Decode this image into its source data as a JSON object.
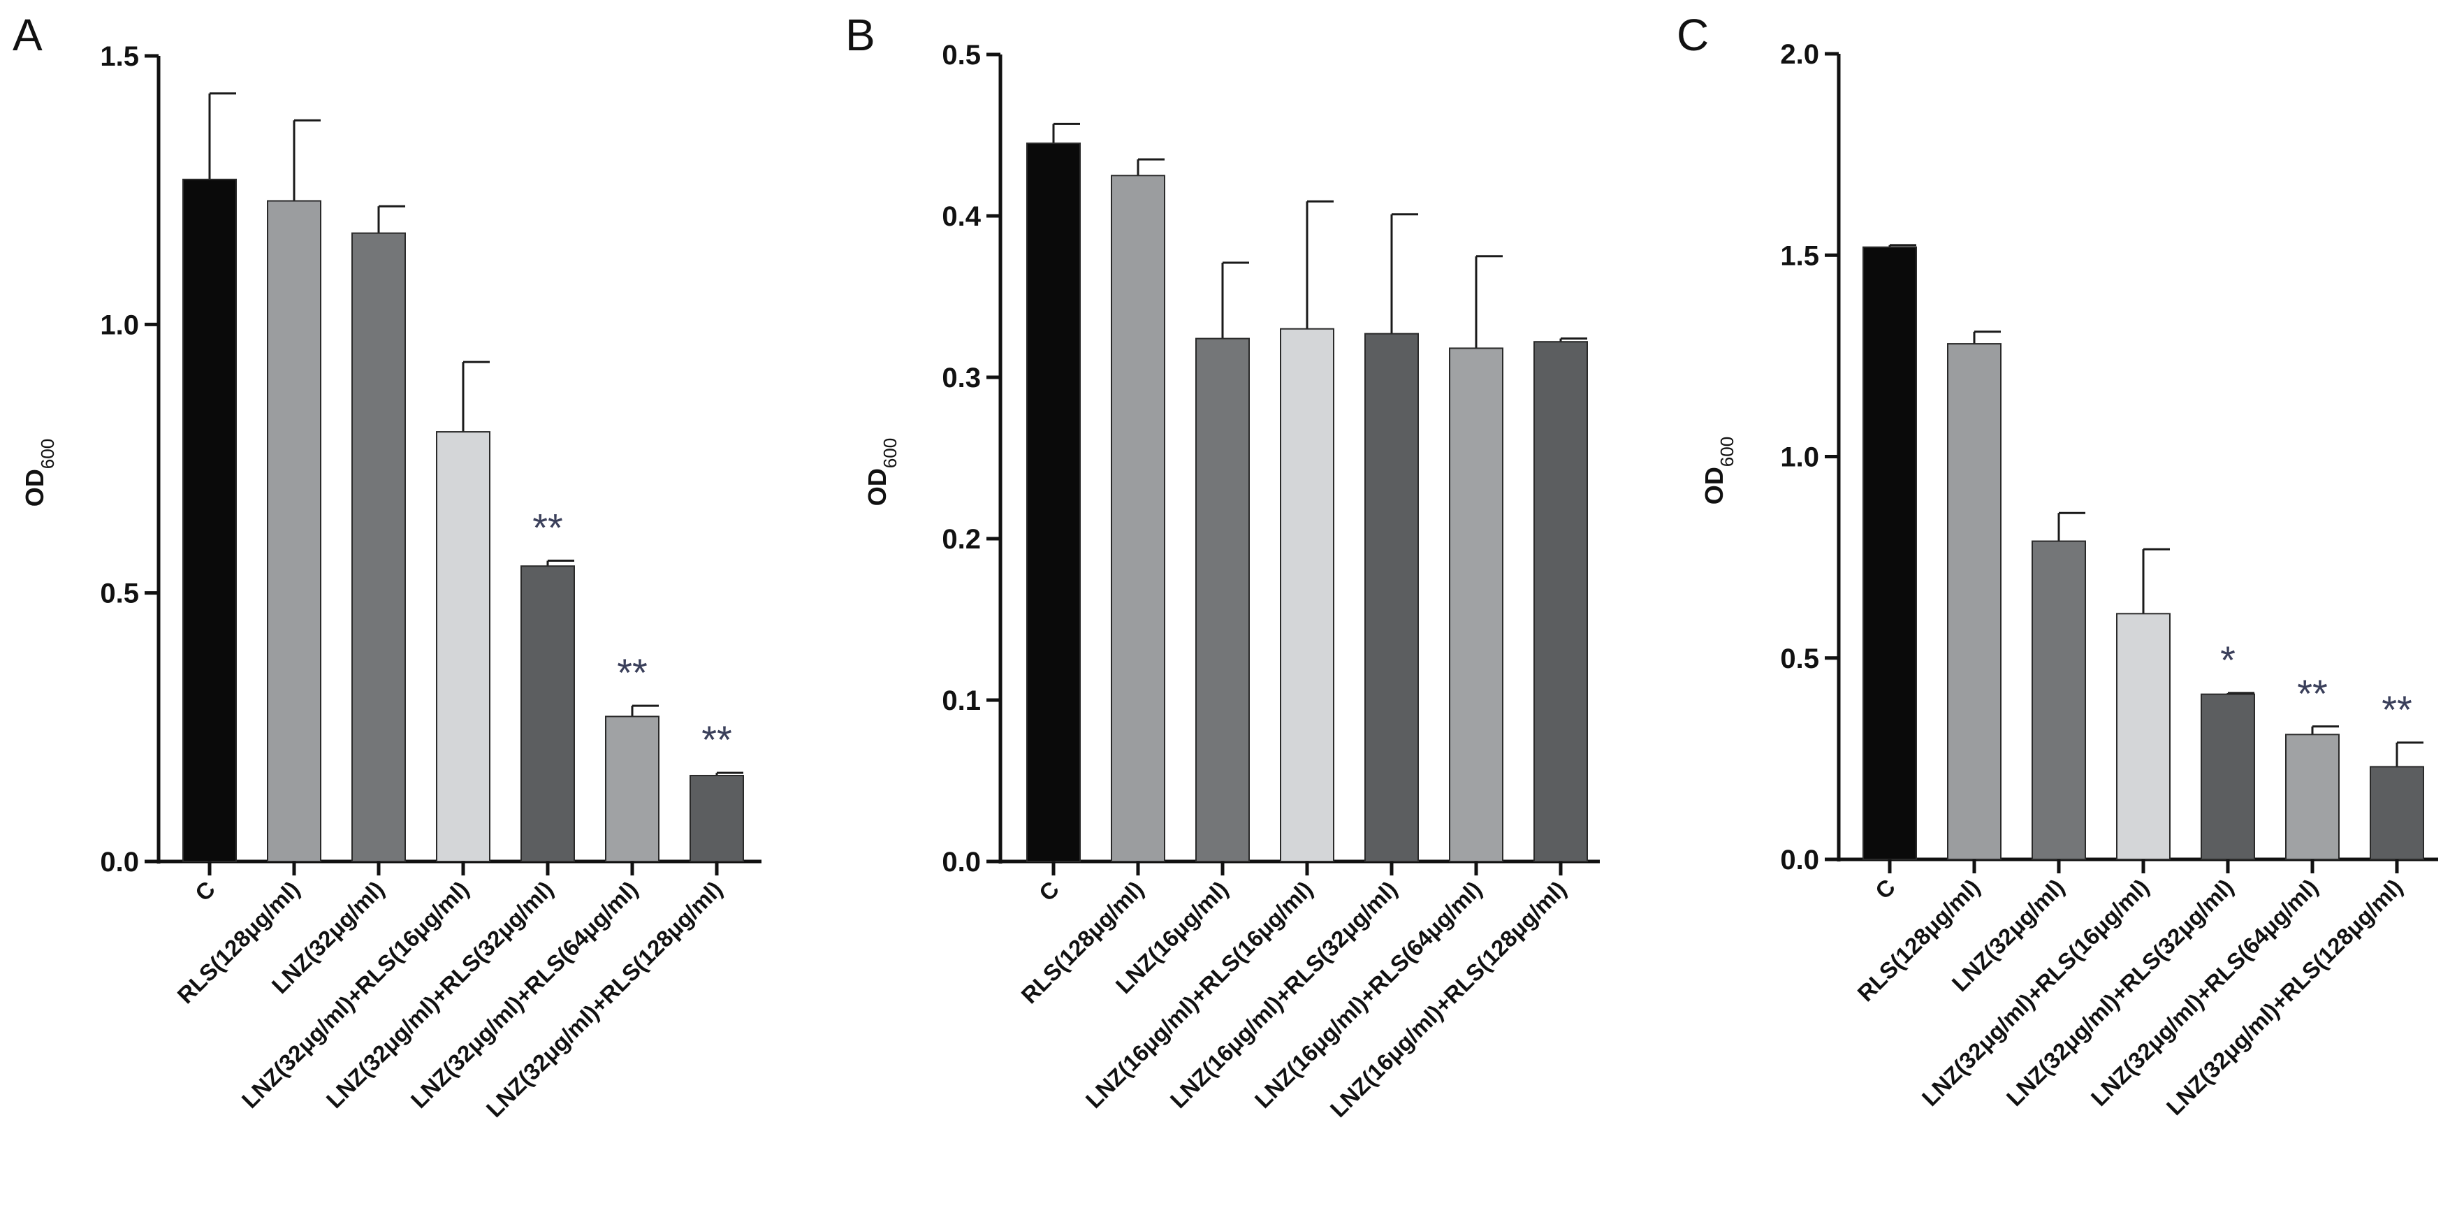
{
  "chart_data": [
    {
      "panel": "A",
      "type": "bar",
      "ylabel": "OD",
      "ylabel_sub": "600",
      "ylim": [
        0,
        1.5
      ],
      "yticks": [
        0.0,
        0.5,
        1.0,
        1.5
      ],
      "ytick_labels": [
        "0.0",
        "0.5",
        "1.0",
        "1.5"
      ],
      "categories": [
        "C",
        "RLS(128μg/ml)",
        "LNZ(32μg/ml)",
        "LNZ(32μg/ml)+RLS(16μg/ml)",
        "LNZ(32μg/ml)+RLS(32μg/ml)",
        "LNZ(32μg/ml)+RLS(64μg/ml)",
        "LNZ(32μg/ml)+RLS(128μg/ml)"
      ],
      "values": [
        1.27,
        1.23,
        1.17,
        0.8,
        0.55,
        0.27,
        0.16
      ],
      "errors": [
        0.16,
        0.15,
        0.05,
        0.13,
        0.01,
        0.02,
        0.005
      ],
      "significance": [
        "",
        "",
        "",
        "",
        "**",
        "**",
        "**"
      ],
      "colors": [
        "#0a0a0a",
        "#9b9d9f",
        "#747678",
        "#d4d6d8",
        "#5c5e60",
        "#a0a2a4",
        "#5c5e60"
      ]
    },
    {
      "panel": "B",
      "type": "bar",
      "ylabel": "OD",
      "ylabel_sub": "600",
      "ylim": [
        0,
        0.5
      ],
      "yticks": [
        0.0,
        0.1,
        0.2,
        0.3,
        0.4,
        0.5
      ],
      "ytick_labels": [
        "0.0",
        "0.1",
        "0.2",
        "0.3",
        "0.4",
        "0.5"
      ],
      "categories": [
        "C",
        "RLS(128μg/ml)",
        "LNZ(16μg/ml)",
        "LNZ(16μg/ml)+RLS(16μg/ml)",
        "LNZ(16μg/ml)+RLS(32μg/ml)",
        "LNZ(16μg/ml)+RLS(64μg/ml)",
        "LNZ(16μg/ml)+RLS(128μg/ml)"
      ],
      "values": [
        0.445,
        0.425,
        0.324,
        0.33,
        0.327,
        0.318,
        0.322
      ],
      "errors": [
        0.012,
        0.01,
        0.047,
        0.079,
        0.074,
        0.057,
        0.002
      ],
      "significance": [
        "",
        "",
        "",
        "",
        "",
        "",
        ""
      ],
      "colors": [
        "#0a0a0a",
        "#9b9d9f",
        "#747678",
        "#d4d6d8",
        "#5c5e60",
        "#a0a2a4",
        "#5c5e60"
      ]
    },
    {
      "panel": "C",
      "type": "bar",
      "ylabel": "OD",
      "ylabel_sub": "600",
      "ylim": [
        0,
        2.0
      ],
      "yticks": [
        0.0,
        0.5,
        1.0,
        1.5,
        2.0
      ],
      "ytick_labels": [
        "0.0",
        "0.5",
        "1.0",
        "1.5",
        "2.0"
      ],
      "categories": [
        "C",
        "RLS(128μg/ml)",
        "LNZ(32μg/ml)",
        "LNZ(32μg/ml)+RLS(16μg/ml)",
        "LNZ(32μg/ml)+RLS(32μg/ml)",
        "LNZ(32μg/ml)+RLS(64μg/ml)",
        "LNZ(32μg/ml)+RLS(128μg/ml)"
      ],
      "values": [
        1.52,
        1.28,
        0.79,
        0.61,
        0.41,
        0.31,
        0.23
      ],
      "errors": [
        0.005,
        0.03,
        0.07,
        0.16,
        0.003,
        0.02,
        0.06
      ],
      "significance": [
        "",
        "",
        "",
        "",
        "*",
        "**",
        "**"
      ],
      "colors": [
        "#0a0a0a",
        "#9b9d9f",
        "#747678",
        "#d4d6d8",
        "#5c5e60",
        "#a0a2a4",
        "#5c5e60"
      ]
    }
  ]
}
